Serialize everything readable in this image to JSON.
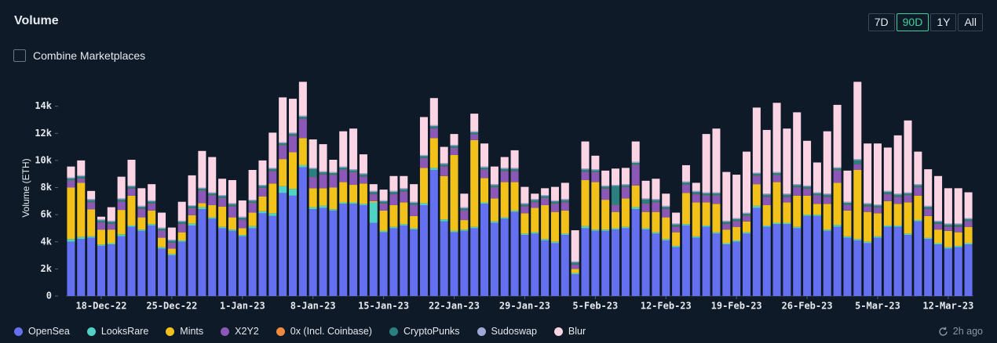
{
  "header": {
    "title": "Volume",
    "ranges": [
      "7D",
      "90D",
      "1Y",
      "All"
    ],
    "combine": "Combine Marketplaces"
  },
  "footer": {
    "updated": "2h ago"
  },
  "chart_data": {
    "type": "bar",
    "stacked": true,
    "y_label": "Volume (ETH)",
    "legend": "bottom",
    "categories": [
      null,
      null,
      null,
      "18-Dec-22",
      null,
      null,
      null,
      null,
      null,
      null,
      "25-Dec-22",
      null,
      null,
      null,
      null,
      null,
      null,
      "1-Jan-23",
      null,
      null,
      null,
      null,
      null,
      null,
      "8-Jan-23",
      null,
      null,
      null,
      null,
      null,
      null,
      "15-Jan-23",
      null,
      null,
      null,
      null,
      null,
      null,
      "22-Jan-23",
      null,
      null,
      null,
      null,
      null,
      null,
      "29-Jan-23",
      null,
      null,
      null,
      null,
      null,
      null,
      "5-Feb-23",
      null,
      null,
      null,
      null,
      null,
      null,
      "12-Feb-23",
      null,
      null,
      null,
      null,
      null,
      null,
      "19-Feb-23",
      null,
      null,
      null,
      null,
      null,
      null,
      "26-Feb-23",
      null,
      null,
      null,
      null,
      null,
      null,
      "5-Mar-23",
      null,
      null,
      null,
      null,
      null,
      null,
      "12-Mar-23",
      null,
      null
    ],
    "ylim": [
      0,
      16000
    ],
    "yticks": [
      0,
      {
        "value": 2000,
        "label": "2k"
      },
      {
        "value": 4000,
        "label": "4k"
      },
      {
        "value": 6000,
        "label": "6k"
      },
      {
        "value": 8000,
        "label": "8k"
      },
      {
        "value": 10000,
        "label": "10k"
      },
      {
        "value": 12000,
        "label": "12k"
      },
      {
        "value": 14000,
        "label": "14k"
      }
    ],
    "series": [
      {
        "name": "OpenSea",
        "color": "#6470f0",
        "values": [
          4000,
          4200,
          4300,
          3700,
          3800,
          4400,
          5100,
          4800,
          5200,
          3500,
          3000,
          4000,
          5200,
          6400,
          5700,
          5000,
          4800,
          4400,
          5000,
          6100,
          5900,
          7600,
          7400,
          9500,
          6400,
          6500,
          6300,
          6800,
          6800,
          6700,
          5400,
          4700,
          5000,
          5200,
          4900,
          6700,
          9300,
          5500,
          4700,
          4800,
          5000,
          6800,
          5400,
          5700,
          6200,
          4500,
          4600,
          4100,
          3900,
          4500,
          1600,
          5000,
          4800,
          4800,
          4900,
          5000,
          6400,
          4900,
          4600,
          4100,
          3600,
          5200,
          4300,
          5100,
          4600,
          3800,
          4000,
          4600,
          6500,
          5100,
          5300,
          5300,
          5000,
          5900,
          5900,
          4800,
          5100,
          4300,
          4100,
          3900,
          4300,
          5100,
          5100,
          4500,
          5500,
          4200,
          3800,
          3500,
          3600,
          3800
        ]
      },
      {
        "name": "LooksRare",
        "color": "#4fd3c4",
        "values": [
          200,
          150,
          100,
          100,
          100,
          150,
          100,
          100,
          100,
          100,
          100,
          100,
          150,
          150,
          100,
          100,
          100,
          100,
          150,
          150,
          200,
          500,
          500,
          150,
          150,
          150,
          100,
          100,
          100,
          100,
          1500,
          100,
          100,
          100,
          100,
          150,
          150,
          150,
          100,
          100,
          100,
          100,
          100,
          100,
          100,
          100,
          100,
          100,
          100,
          100,
          100,
          150,
          100,
          100,
          100,
          100,
          150,
          100,
          100,
          100,
          100,
          100,
          100,
          100,
          100,
          100,
          100,
          100,
          150,
          100,
          100,
          100,
          100,
          100,
          100,
          100,
          150,
          100,
          100,
          100,
          100,
          100,
          100,
          100,
          100,
          100,
          100,
          100,
          100,
          100
        ]
      },
      {
        "name": "Mints",
        "color": "#f2c21b",
        "values": [
          3800,
          4000,
          2000,
          1100,
          1000,
          1800,
          2200,
          900,
          1000,
          700,
          400,
          600,
          600,
          300,
          900,
          1500,
          900,
          500,
          1000,
          1100,
          2200,
          2000,
          2700,
          2000,
          1400,
          1300,
          1600,
          1500,
          1300,
          1500,
          100,
          1500,
          1600,
          1600,
          900,
          2600,
          2200,
          3200,
          5600,
          700,
          6400,
          1800,
          1700,
          2600,
          2100,
          1500,
          1800,
          2500,
          2200,
          1700,
          300,
          3400,
          3500,
          2200,
          1200,
          2100,
          1600,
          1200,
          1500,
          1600,
          1000,
          2300,
          2500,
          1700,
          2100,
          1000,
          1000,
          800,
          1600,
          1500,
          3000,
          1500,
          2300,
          1400,
          800,
          1900,
          3100,
          1900,
          5100,
          2200,
          1700,
          1800,
          1600,
          2300,
          1800,
          1600,
          1000,
          1200,
          1000,
          1200
        ]
      },
      {
        "name": "X2Y2",
        "color": "#8b58b8",
        "values": [
          500,
          300,
          500,
          500,
          400,
          600,
          500,
          600,
          500,
          500,
          400,
          600,
          500,
          900,
          700,
          600,
          800,
          600,
          700,
          600,
          900,
          1000,
          1200,
          1400,
          800,
          1000,
          900,
          900,
          900,
          500,
          500,
          500,
          800,
          800,
          800,
          700,
          700,
          700,
          500,
          700,
          400,
          600,
          800,
          800,
          800,
          500,
          400,
          500,
          600,
          600,
          300,
          600,
          700,
          800,
          500,
          800,
          1500,
          600,
          700,
          600,
          400,
          600,
          600,
          500,
          600,
          400,
          400,
          400,
          600,
          600,
          500,
          400,
          600,
          500,
          600,
          500,
          900,
          400,
          400,
          400,
          400,
          500,
          500,
          500,
          600,
          500,
          400,
          300,
          400,
          400
        ]
      },
      {
        "name": "0x (Incl. Coinbase)",
        "color": "#f08a3c",
        "values": [
          20,
          20,
          20,
          20,
          20,
          20,
          20,
          20,
          20,
          20,
          20,
          20,
          20,
          20,
          20,
          20,
          20,
          20,
          20,
          20,
          20,
          20,
          20,
          20,
          20,
          20,
          20,
          20,
          20,
          20,
          20,
          20,
          20,
          20,
          20,
          20,
          20,
          20,
          20,
          20,
          20,
          20,
          20,
          20,
          20,
          20,
          20,
          20,
          20,
          20,
          20,
          20,
          20,
          20,
          20,
          20,
          20,
          20,
          20,
          20,
          20,
          20,
          20,
          20,
          20,
          20,
          20,
          20,
          20,
          20,
          20,
          20,
          20,
          20,
          20,
          20,
          20,
          20,
          20,
          20,
          20,
          20,
          20,
          20,
          20,
          20,
          20,
          20,
          20,
          20
        ]
      },
      {
        "name": "CryptoPunks",
        "color": "#2b7f7e",
        "values": [
          150,
          150,
          150,
          150,
          150,
          150,
          150,
          150,
          150,
          150,
          150,
          150,
          150,
          150,
          150,
          150,
          150,
          150,
          150,
          150,
          150,
          150,
          150,
          150,
          600,
          150,
          150,
          150,
          150,
          150,
          150,
          150,
          150,
          150,
          150,
          150,
          150,
          150,
          150,
          150,
          150,
          150,
          150,
          150,
          150,
          150,
          150,
          150,
          150,
          150,
          150,
          150,
          150,
          150,
          1400,
          150,
          150,
          300,
          150,
          150,
          150,
          150,
          150,
          150,
          150,
          150,
          150,
          150,
          150,
          150,
          150,
          150,
          150,
          150,
          150,
          150,
          150,
          150,
          300,
          150,
          150,
          150,
          150,
          150,
          150,
          150,
          150,
          150,
          150,
          150
        ]
      },
      {
        "name": "Sudoswap",
        "color": "#9ea8d6",
        "values": [
          80,
          80,
          80,
          80,
          80,
          80,
          80,
          80,
          80,
          80,
          80,
          80,
          80,
          80,
          80,
          80,
          80,
          80,
          80,
          80,
          80,
          80,
          80,
          80,
          80,
          80,
          80,
          80,
          80,
          80,
          80,
          80,
          80,
          80,
          80,
          80,
          80,
          80,
          80,
          80,
          80,
          80,
          80,
          80,
          80,
          80,
          80,
          80,
          80,
          80,
          80,
          80,
          80,
          80,
          80,
          80,
          80,
          80,
          80,
          80,
          80,
          80,
          80,
          80,
          80,
          80,
          80,
          80,
          80,
          80,
          80,
          80,
          80,
          80,
          80,
          80,
          80,
          80,
          80,
          80,
          80,
          80,
          80,
          80,
          80,
          80,
          80,
          80,
          80,
          80
        ]
      },
      {
        "name": "Blur",
        "color": "#fcd5e4",
        "values": [
          800,
          1100,
          600,
          200,
          1000,
          1600,
          1900,
          1300,
          1200,
          1100,
          900,
          1400,
          2200,
          2700,
          2600,
          1200,
          1700,
          1200,
          2200,
          1800,
          2600,
          3300,
          2500,
          2500,
          2100,
          2000,
          900,
          2600,
          3000,
          1400,
          500,
          800,
          1100,
          900,
          1300,
          2800,
          2000,
          1200,
          800,
          1000,
          1300,
          1700,
          1300,
          800,
          1300,
          1200,
          400,
          500,
          1000,
          1200,
          2300,
          2000,
          1000,
          1100,
          1200,
          1200,
          1500,
          1300,
          1500,
          900,
          800,
          1200,
          600,
          4300,
          4700,
          3600,
          3200,
          4500,
          4800,
          4700,
          5100,
          4800,
          5300,
          3300,
          2200,
          4600,
          4600,
          2300,
          5700,
          4400,
          4500,
          3200,
          4300,
          5300,
          2400,
          2700,
          3300,
          2600,
          2600,
          1900
        ]
      }
    ]
  }
}
